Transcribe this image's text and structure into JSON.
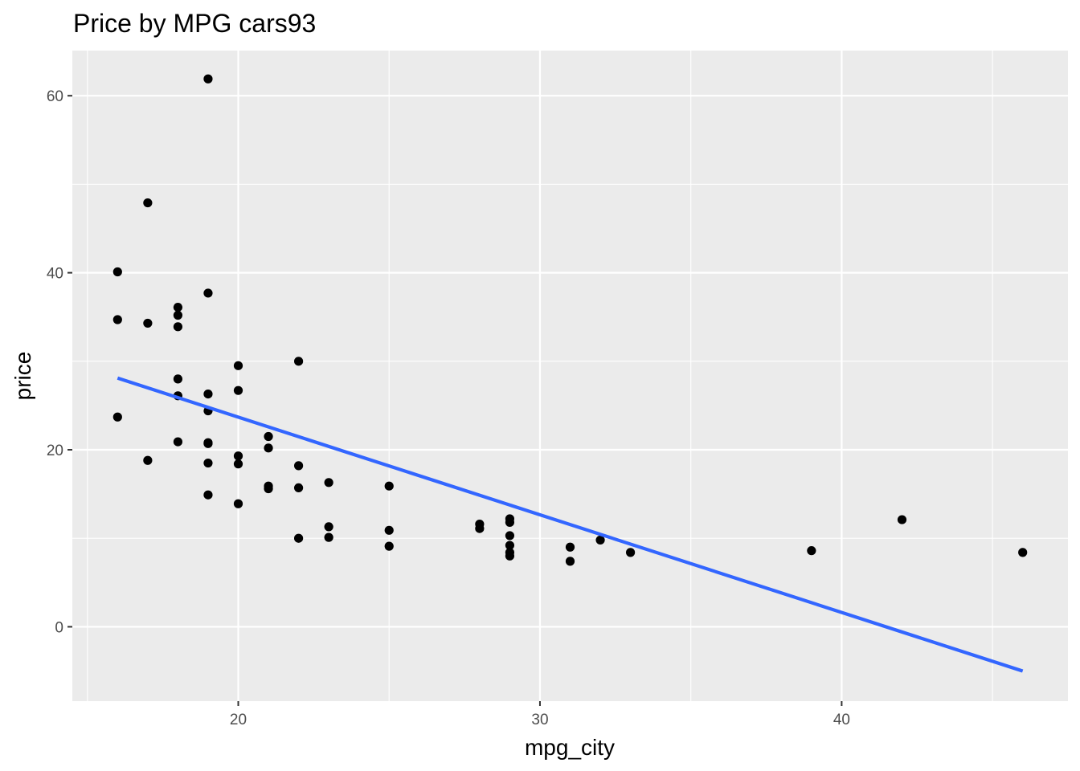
{
  "chart_data": {
    "type": "scatter",
    "title": "Price by MPG cars93",
    "xlabel": "mpg_city",
    "ylabel": "price",
    "xlim": [
      14.5,
      47.5
    ],
    "ylim": [
      -8.4,
      65.1
    ],
    "x_ticks": [
      20,
      30,
      40
    ],
    "y_ticks": [
      0,
      20,
      40,
      60
    ],
    "x_tick_labels": [
      "20",
      "30",
      "40"
    ],
    "y_tick_labels": [
      "0",
      "20",
      "40",
      "60"
    ],
    "grid": true,
    "background": "#ebebeb",
    "grid_color": "#ffffff",
    "point_color": "#000000",
    "line_color": "#3366ff",
    "series": [
      {
        "kind": "points",
        "points": [
          [
            16,
            40.1
          ],
          [
            16,
            34.7
          ],
          [
            16,
            23.7
          ],
          [
            17,
            47.9
          ],
          [
            17,
            34.3
          ],
          [
            17,
            18.8
          ],
          [
            18,
            36.1
          ],
          [
            18,
            35.2
          ],
          [
            18,
            33.9
          ],
          [
            18,
            28.0
          ],
          [
            18,
            26.1
          ],
          [
            18,
            20.9
          ],
          [
            19,
            61.9
          ],
          [
            19,
            37.7
          ],
          [
            19,
            26.3
          ],
          [
            19,
            24.4
          ],
          [
            19,
            20.8
          ],
          [
            19,
            20.7
          ],
          [
            19,
            18.5
          ],
          [
            19,
            14.9
          ],
          [
            20,
            29.5
          ],
          [
            20,
            26.7
          ],
          [
            20,
            19.3
          ],
          [
            20,
            18.4
          ],
          [
            20,
            13.9
          ],
          [
            21,
            21.5
          ],
          [
            21,
            20.2
          ],
          [
            21,
            15.9
          ],
          [
            21,
            15.6
          ],
          [
            22,
            30.0
          ],
          [
            22,
            18.2
          ],
          [
            22,
            15.7
          ],
          [
            22,
            10.0
          ],
          [
            23,
            16.3
          ],
          [
            23,
            11.3
          ],
          [
            23,
            10.1
          ],
          [
            25,
            15.9
          ],
          [
            25,
            10.9
          ],
          [
            25,
            9.1
          ],
          [
            28,
            11.6
          ],
          [
            28,
            11.1
          ],
          [
            29,
            12.2
          ],
          [
            29,
            11.8
          ],
          [
            29,
            10.3
          ],
          [
            29,
            9.2
          ],
          [
            29,
            8.4
          ],
          [
            29,
            8.0
          ],
          [
            31,
            9.0
          ],
          [
            31,
            7.4
          ],
          [
            32,
            9.8
          ],
          [
            33,
            8.4
          ],
          [
            39,
            8.6
          ],
          [
            42,
            12.1
          ],
          [
            46,
            8.4
          ]
        ]
      },
      {
        "kind": "smooth-lm",
        "x": [
          16,
          46
        ],
        "y": [
          28.1,
          -5.0
        ]
      }
    ]
  }
}
